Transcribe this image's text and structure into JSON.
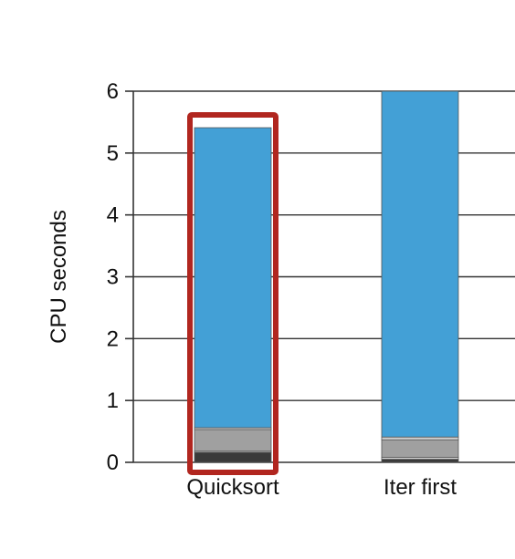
{
  "chart_data": {
    "type": "bar",
    "stacked": true,
    "title": "",
    "xlabel": "",
    "ylabel": "CPU seconds",
    "ylim": [
      0,
      6
    ],
    "yticks": [
      0,
      1,
      2,
      3,
      4,
      5,
      6
    ],
    "grid": "horizontal",
    "categories": [
      "Quicksort",
      "Iter first"
    ],
    "series": [
      {
        "color": "#3a3a3a",
        "values": [
          0.16,
          0.05
        ]
      },
      {
        "color": "#d9d9d9",
        "values": [
          0.02,
          0.03
        ]
      },
      {
        "color": "#a0a0a0",
        "values": [
          0.35,
          0.28
        ]
      },
      {
        "color": "#c8c8c8",
        "values": [
          0.03,
          0.05
        ]
      },
      {
        "color": "#43a0d6",
        "values": [
          4.85,
          5.59
        ]
      }
    ],
    "highlight": {
      "category": "Quicksort",
      "color": "#b1261f"
    },
    "axis_color": "#333333",
    "grid_color": "#333333"
  }
}
